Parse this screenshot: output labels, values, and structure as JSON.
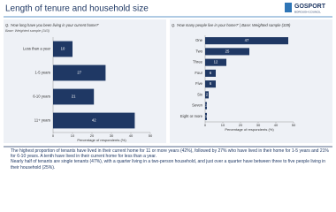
{
  "slide": {
    "title": "Length of tenure and household size",
    "logo": {
      "name": "GOSPORT",
      "subtitle": "BOROUGH COUNCIL"
    },
    "bullets": [
      "The highest proportion of tenants have lived in their current home for 11 or more years (42%), followed by 27% who have lived in their home for 1-5 years and 21% for 6-10 years. A tenth have lived in their current home for less than a year.",
      "Nearly half of tenants are single tenants (47%), with a quarter living in a two-person household, and just over a quarter have between three to five people living in their household (25%)."
    ]
  },
  "chart_data": [
    {
      "type": "bar",
      "orientation": "horizontal",
      "title": "Q. 'How long have you been living in your current home?'",
      "subtitle": "Base: Weighted sample (343)",
      "categories": [
        "Less than a year",
        "1-5 years",
        "6-10 years",
        "11+ years"
      ],
      "values": [
        10,
        27,
        21,
        42
      ],
      "color": "#1f3864",
      "xlim": [
        0,
        50
      ],
      "xticks": [
        0,
        10,
        20,
        30,
        40,
        50
      ],
      "x_label": "Percentage of respondents (%)"
    },
    {
      "type": "bar",
      "orientation": "horizontal",
      "title": "Q. 'How many people live in your home?' | Base: Weighted sample (339)",
      "categories": [
        "One",
        "Two",
        "Three",
        "Four",
        "Five",
        "Six",
        "Seven",
        "Eight or more"
      ],
      "values": [
        47,
        25,
        12,
        6,
        6,
        2,
        1,
        1
      ],
      "color": "#1f3864",
      "xlim": [
        0,
        50
      ],
      "xticks": [
        0,
        10,
        20,
        30,
        40,
        50
      ],
      "x_label": "Percentage of respondents (%)"
    }
  ]
}
